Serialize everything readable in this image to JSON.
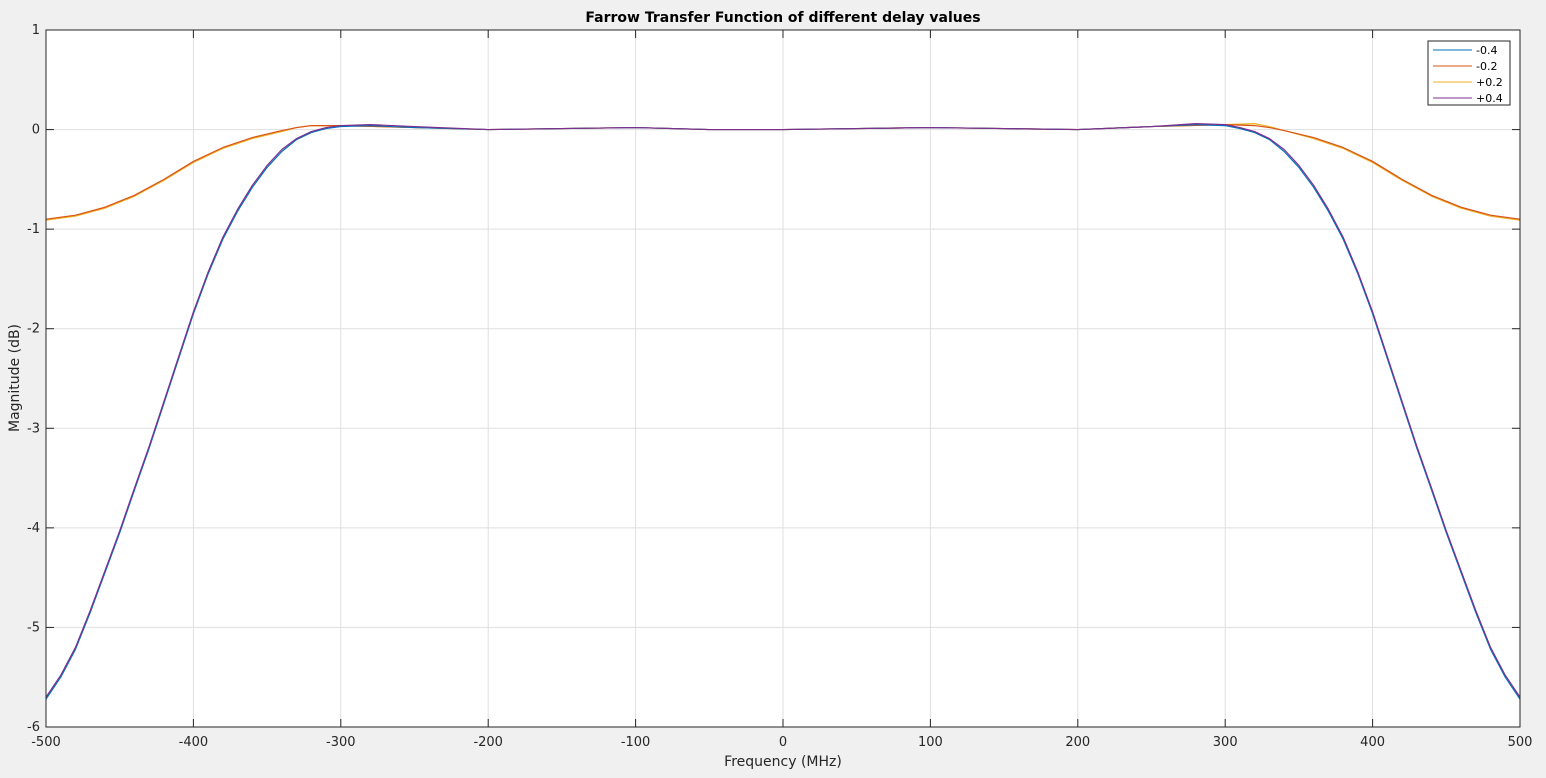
{
  "chart_data": {
    "type": "line",
    "title": "Farrow Transfer Function of different delay values",
    "xlabel": "Frequency (MHz)",
    "ylabel": "Magnitude (dB)",
    "xlim": [
      -500,
      500
    ],
    "ylim": [
      -6,
      1
    ],
    "xticks": [
      -500,
      -400,
      -300,
      -200,
      -100,
      0,
      100,
      200,
      300,
      400,
      500
    ],
    "yticks": [
      -6,
      -5,
      -4,
      -3,
      -2,
      -1,
      0,
      1
    ],
    "xtick_labels": [
      "-500",
      "-400",
      "-300",
      "-200",
      "-100",
      "0",
      "100",
      "200",
      "300",
      "400",
      "500"
    ],
    "ytick_labels": [
      "-6",
      "-5",
      "-4",
      "-3",
      "-2",
      "-1",
      "0",
      "1"
    ],
    "grid": true,
    "legend_position": "top-right",
    "series": [
      {
        "name": "-0.4",
        "color": "#0072bd",
        "x": [
          -500,
          -490,
          -480,
          -470,
          -460,
          -450,
          -440,
          -430,
          -420,
          -410,
          -400,
          -390,
          -380,
          -370,
          -360,
          -350,
          -340,
          -330,
          -320,
          -310,
          -300,
          -280,
          -250,
          -200,
          -150,
          -100,
          -50,
          0,
          50,
          100,
          150,
          200,
          250,
          280,
          300,
          310,
          320,
          330,
          340,
          350,
          360,
          370,
          380,
          390,
          400,
          410,
          420,
          430,
          440,
          450,
          460,
          470,
          480,
          490,
          500
        ],
        "y": [
          -5.72,
          -5.5,
          -5.22,
          -4.85,
          -4.45,
          -4.05,
          -3.62,
          -3.2,
          -2.75,
          -2.3,
          -1.85,
          -1.45,
          -1.1,
          -0.82,
          -0.58,
          -0.38,
          -0.22,
          -0.1,
          -0.03,
          0.01,
          0.03,
          0.04,
          0.02,
          0.0,
          0.01,
          0.02,
          0.0,
          0.0,
          0.01,
          0.02,
          0.01,
          0.0,
          0.03,
          0.05,
          0.04,
          0.01,
          -0.03,
          -0.1,
          -0.22,
          -0.38,
          -0.58,
          -0.82,
          -1.1,
          -1.45,
          -1.85,
          -2.3,
          -2.75,
          -3.2,
          -3.62,
          -4.05,
          -4.45,
          -4.85,
          -5.22,
          -5.5,
          -5.72
        ]
      },
      {
        "name": "-0.2",
        "color": "#d95319",
        "x": [
          -500,
          -480,
          -460,
          -440,
          -420,
          -400,
          -380,
          -360,
          -340,
          -330,
          -320,
          -300,
          -250,
          -200,
          -150,
          -100,
          -50,
          0,
          50,
          100,
          150,
          200,
          250,
          300,
          320,
          330,
          340,
          360,
          380,
          400,
          420,
          440,
          460,
          480,
          500
        ],
        "y": [
          -0.9,
          -0.86,
          -0.78,
          -0.66,
          -0.5,
          -0.32,
          -0.18,
          -0.08,
          -0.01,
          0.02,
          0.04,
          0.04,
          0.02,
          0.0,
          0.01,
          0.02,
          0.0,
          0.0,
          0.01,
          0.02,
          0.01,
          0.0,
          0.03,
          0.05,
          0.04,
          0.02,
          -0.01,
          -0.08,
          -0.18,
          -0.32,
          -0.5,
          -0.66,
          -0.78,
          -0.86,
          -0.9
        ]
      },
      {
        "name": "+0.2",
        "color": "#edb120",
        "x": [
          -500,
          -480,
          -460,
          -440,
          -420,
          -400,
          -380,
          -360,
          -340,
          -330,
          -320,
          -300,
          -250,
          -200,
          -150,
          -100,
          -50,
          0,
          50,
          100,
          150,
          200,
          250,
          300,
          320,
          330,
          340,
          360,
          380,
          400,
          420,
          440,
          460,
          480,
          500
        ],
        "y": [
          -0.91,
          -0.87,
          -0.79,
          -0.67,
          -0.51,
          -0.33,
          -0.19,
          -0.09,
          -0.02,
          0.02,
          0.04,
          0.04,
          0.02,
          0.0,
          0.01,
          0.02,
          0.0,
          0.0,
          0.01,
          0.02,
          0.01,
          0.0,
          0.03,
          0.05,
          0.06,
          0.03,
          -0.01,
          -0.09,
          -0.19,
          -0.33,
          -0.51,
          -0.67,
          -0.79,
          -0.87,
          -0.91
        ]
      },
      {
        "name": "+0.4",
        "color": "#7e2f8e",
        "x": [
          -500,
          -490,
          -480,
          -470,
          -460,
          -450,
          -440,
          -430,
          -420,
          -410,
          -400,
          -390,
          -380,
          -370,
          -360,
          -350,
          -340,
          -330,
          -320,
          -310,
          -300,
          -280,
          -250,
          -200,
          -150,
          -100,
          -50,
          0,
          50,
          100,
          150,
          200,
          250,
          280,
          300,
          310,
          320,
          330,
          340,
          350,
          360,
          370,
          380,
          390,
          400,
          410,
          420,
          430,
          440,
          450,
          460,
          470,
          480,
          490,
          500
        ],
        "y": [
          -5.7,
          -5.48,
          -5.2,
          -4.83,
          -4.43,
          -4.03,
          -3.6,
          -3.18,
          -2.73,
          -2.28,
          -1.83,
          -1.43,
          -1.08,
          -0.8,
          -0.56,
          -0.36,
          -0.2,
          -0.09,
          -0.02,
          0.02,
          0.04,
          0.05,
          0.03,
          0.0,
          0.01,
          0.02,
          0.0,
          0.0,
          0.01,
          0.02,
          0.01,
          0.0,
          0.03,
          0.06,
          0.05,
          0.02,
          -0.02,
          -0.09,
          -0.2,
          -0.36,
          -0.56,
          -0.8,
          -1.08,
          -1.43,
          -1.83,
          -2.28,
          -2.73,
          -3.18,
          -3.6,
          -4.03,
          -4.43,
          -4.83,
          -5.2,
          -5.48,
          -5.7
        ]
      }
    ]
  }
}
